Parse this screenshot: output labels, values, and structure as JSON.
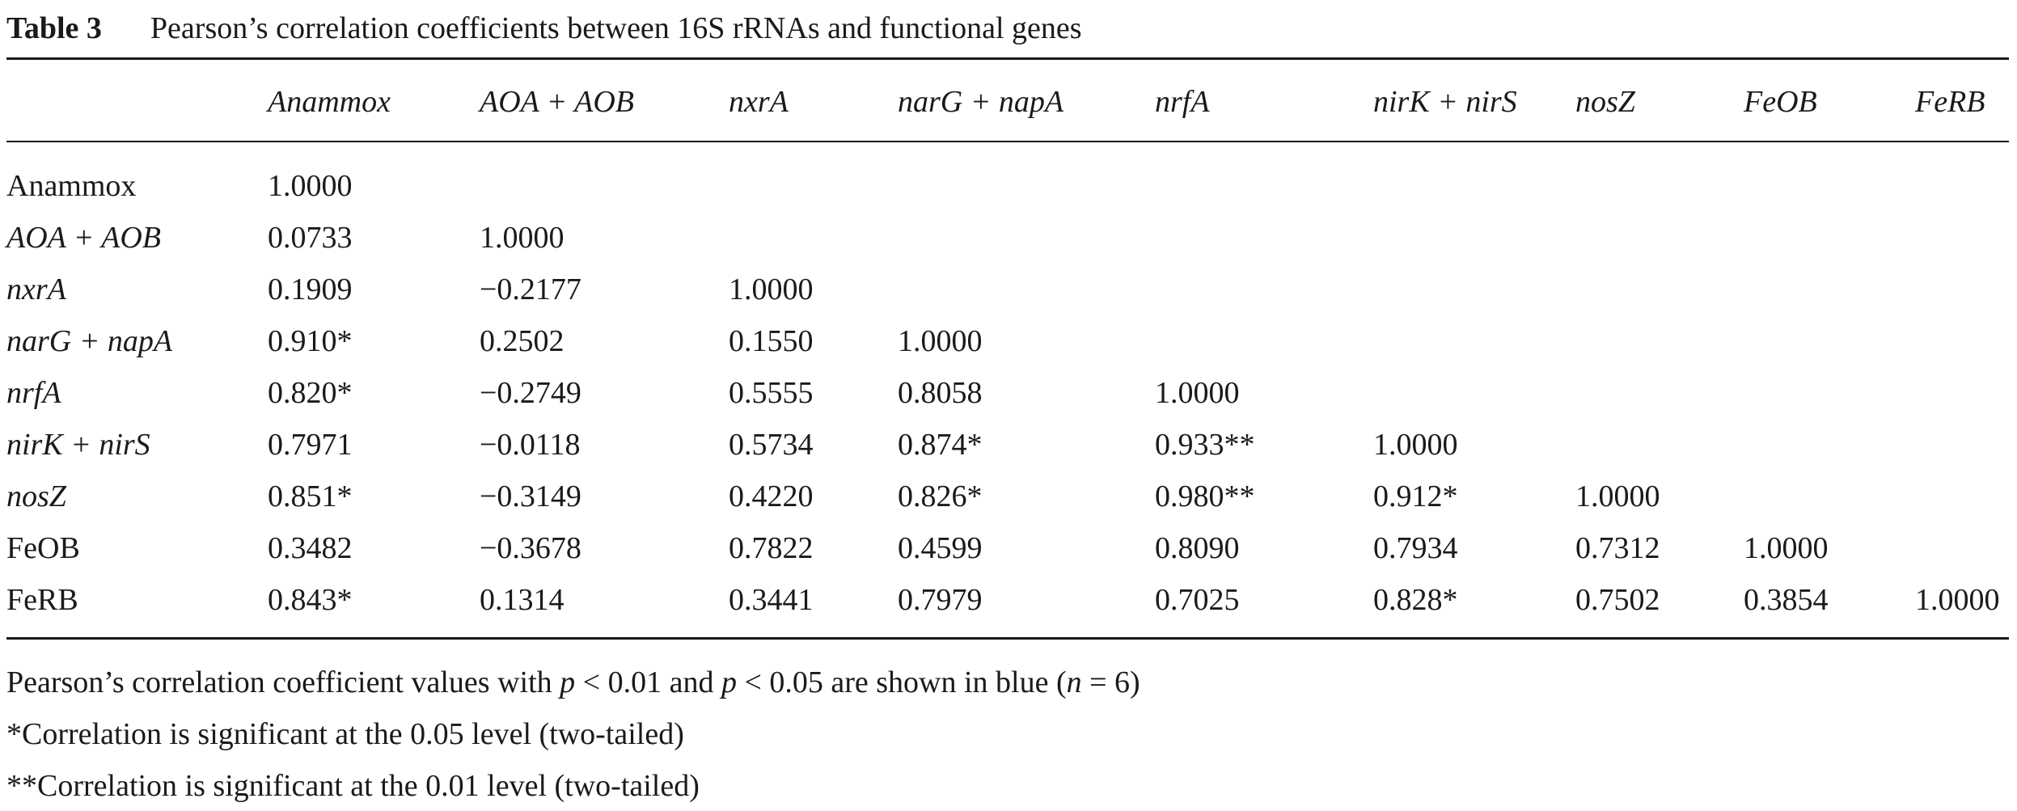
{
  "caption": {
    "label": "Table 3",
    "title": "Pearson’s correlation coefficients between 16S rRNAs and functional genes"
  },
  "columns": [
    {
      "text": "Anammox",
      "italic": true
    },
    {
      "text": "AOA + AOB",
      "italic": true
    },
    {
      "text": "nxrA",
      "italic": true
    },
    {
      "text": "narG + napA",
      "italic": true
    },
    {
      "text": "nrfA",
      "italic": true
    },
    {
      "text": "nirK + nirS",
      "italic": true
    },
    {
      "text": "nosZ",
      "italic": true
    },
    {
      "text": "FeOB",
      "italic": true
    },
    {
      "text": "FeRB",
      "italic": true
    }
  ],
  "rows": [
    {
      "label": "Anammox",
      "italic": false,
      "values": [
        "1.0000"
      ]
    },
    {
      "label": "AOA + AOB",
      "italic": true,
      "values": [
        "0.0733",
        "1.0000"
      ]
    },
    {
      "label": "nxrA",
      "italic": true,
      "values": [
        "0.1909",
        "−0.2177",
        "1.0000"
      ]
    },
    {
      "label": "narG + napA",
      "italic": true,
      "values": [
        "0.910*",
        "0.2502",
        "0.1550",
        "1.0000"
      ]
    },
    {
      "label": "nrfA",
      "italic": true,
      "values": [
        "0.820*",
        "−0.2749",
        "0.5555",
        "0.8058",
        "1.0000"
      ]
    },
    {
      "label": "nirK + nirS",
      "italic": true,
      "values": [
        "0.7971",
        "−0.0118",
        "0.5734",
        "0.874*",
        "0.933**",
        "1.0000"
      ]
    },
    {
      "label": "nosZ",
      "italic": true,
      "values": [
        "0.851*",
        "−0.3149",
        "0.4220",
        "0.826*",
        "0.980**",
        "0.912*",
        "1.0000"
      ]
    },
    {
      "label": "FeOB",
      "italic": false,
      "values": [
        "0.3482",
        "−0.3678",
        "0.7822",
        "0.4599",
        "0.8090",
        "0.7934",
        "0.7312",
        "1.0000"
      ]
    },
    {
      "label": "FeRB",
      "italic": false,
      "values": [
        "0.843*",
        "0.1314",
        "0.3441",
        "0.7979",
        "0.7025",
        "0.828*",
        "0.7502",
        "0.3854",
        "1.0000"
      ]
    }
  ],
  "footnotes": [
    [
      {
        "text": "Pearson’s correlation coefficient values with ",
        "italic": false
      },
      {
        "text": "p",
        "italic": true
      },
      {
        "text": " < 0.01 and ",
        "italic": false
      },
      {
        "text": "p",
        "italic": true
      },
      {
        "text": " < 0.05 are shown in blue (",
        "italic": false
      },
      {
        "text": "n",
        "italic": true
      },
      {
        "text": " = 6)",
        "italic": false
      }
    ],
    [
      {
        "text": "*Correlation is significant at the 0.05 level (two-tailed)",
        "italic": false
      }
    ],
    [
      {
        "text": "**Correlation is significant at the 0.01 level (two-tailed)",
        "italic": false
      }
    ]
  ]
}
